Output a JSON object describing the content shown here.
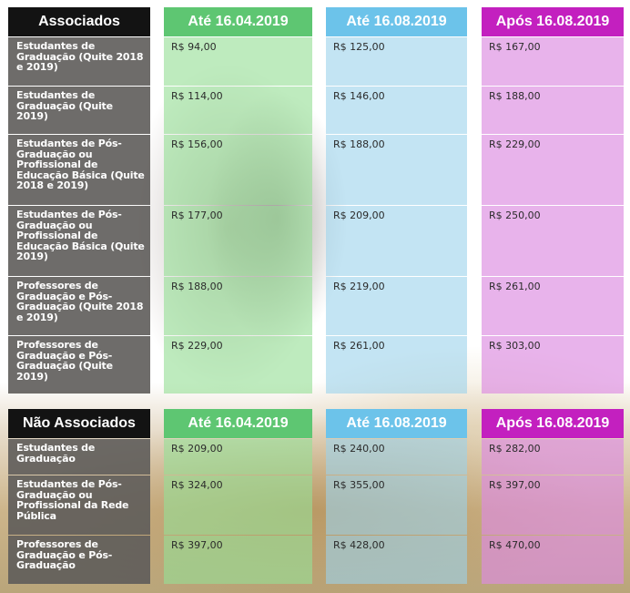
{
  "headers": {
    "periods": [
      "Até 16.04.2019",
      "Até 16.08.2019",
      "Após 16.08.2019"
    ]
  },
  "associados": {
    "title": "Associados",
    "rows": [
      {
        "label": "Estudantes de Graduação (Quite 2018 e 2019)",
        "prices": [
          "R$ 94,00",
          "R$ 125,00",
          "R$ 167,00"
        ]
      },
      {
        "label": "Estudantes de Graduação (Quite 2019)",
        "prices": [
          "R$ 114,00",
          "R$ 146,00",
          "R$ 188,00"
        ]
      },
      {
        "label": "Estudantes de Pós-Graduação ou Profissional de Educação Básica (Quite 2018 e 2019)",
        "prices": [
          "R$ 156,00",
          "R$ 188,00",
          "R$ 229,00"
        ]
      },
      {
        "label": "Estudantes de Pós-Graduação ou Profissional de Educação Básica (Quite 2019)",
        "prices": [
          "R$ 177,00",
          "R$ 209,00",
          "R$ 250,00"
        ]
      },
      {
        "label": "Professores de Graduação e Pós-Graduação (Quite 2018 e 2019)",
        "prices": [
          "R$ 188,00",
          "R$ 219,00",
          "R$ 261,00"
        ]
      },
      {
        "label": "Professores de Graduação e Pós-Graduação (Quite 2019)",
        "prices": [
          "R$ 229,00",
          "R$ 261,00",
          "R$ 303,00"
        ]
      }
    ]
  },
  "nao_associados": {
    "title": "Não Associados",
    "rows": [
      {
        "label": "Estudantes de Graduação",
        "prices": [
          "R$ 209,00",
          "R$ 240,00",
          "R$ 282,00"
        ]
      },
      {
        "label": "Estudantes de Pós-Graduação ou Profissional da Rede Pública",
        "prices": [
          "R$ 324,00",
          "R$ 355,00",
          "R$ 397,00"
        ]
      },
      {
        "label": "Professores de Graduação e Pós-Graduação",
        "prices": [
          "R$ 397,00",
          "R$ 428,00",
          "R$ 470,00"
        ]
      }
    ]
  },
  "colors": {
    "label_header": "#131313",
    "period1": "#5ec672",
    "period2": "#6cc3ea",
    "period3": "#c320bf"
  }
}
